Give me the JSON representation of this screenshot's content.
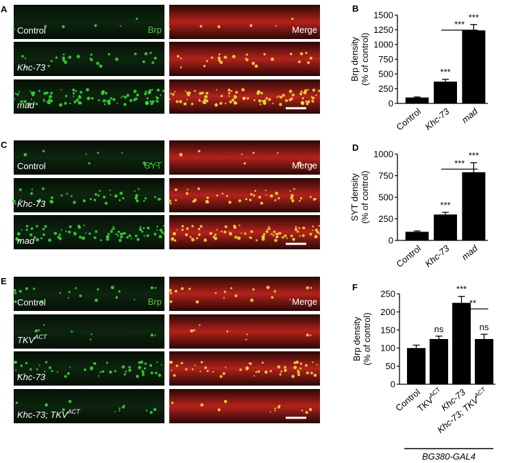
{
  "image_panels": [
    {
      "letter": "A",
      "channel": "Brp",
      "merge": "Merge",
      "rows": [
        {
          "text": "Control",
          "italic": false
        },
        {
          "text": "Khc-73",
          "italic": true
        },
        {
          "text": "mad",
          "italic": true
        }
      ]
    },
    {
      "letter": "C",
      "channel": "SYT",
      "merge": "Merge",
      "rows": [
        {
          "text": "Control",
          "italic": false
        },
        {
          "text": "Khc-73",
          "italic": true
        },
        {
          "text": "mad",
          "italic": true
        }
      ]
    },
    {
      "letter": "E",
      "channel": "Brp",
      "merge": "Merge",
      "rows": [
        {
          "text": "Control",
          "italic": false
        },
        {
          "text": "TKV",
          "sup": "ACT",
          "italic": true
        },
        {
          "text": "Khc-73",
          "italic": true
        },
        {
          "text": "Khc-73; TKV",
          "sup": "ACT",
          "italic": true
        }
      ]
    }
  ],
  "chart_data": [
    {
      "type": "bar",
      "letter": "B",
      "ylabel": [
        "Brp density",
        "(% of control)"
      ],
      "categories": [
        {
          "text": "Control",
          "italic": false
        },
        {
          "text": "Khc-73",
          "italic": true
        },
        {
          "text": "mad",
          "italic": true
        }
      ],
      "values": [
        100,
        370,
        1240
      ],
      "errors": [
        10,
        40,
        100
      ],
      "color": "#000000",
      "annotations": [
        null,
        "***",
        "***"
      ],
      "bracket": {
        "label": "***",
        "from": 1,
        "to": 2
      },
      "ylim": [
        0,
        1500
      ],
      "yticks": [
        0,
        250,
        500,
        750,
        1000,
        1250,
        1500
      ]
    },
    {
      "type": "bar",
      "letter": "D",
      "ylabel": [
        "SYT density",
        "(% of control)"
      ],
      "categories": [
        {
          "text": "Control",
          "italic": false
        },
        {
          "text": "Khc-73",
          "italic": true
        },
        {
          "text": "mad",
          "italic": true
        }
      ],
      "values": [
        100,
        300,
        790
      ],
      "errors": [
        10,
        25,
        110
      ],
      "color": "#000000",
      "annotations": [
        null,
        "***",
        "***"
      ],
      "bracket": {
        "label": "***",
        "from": 1,
        "to": 2
      },
      "ylim": [
        0,
        1000
      ],
      "yticks": [
        0,
        250,
        500,
        750,
        1000
      ]
    },
    {
      "type": "bar",
      "letter": "F",
      "ylabel": [
        "Brp density",
        "(% of control)"
      ],
      "categories": [
        {
          "text": "Control",
          "italic": false
        },
        {
          "text": "TKV",
          "sup": "ACT",
          "italic": false
        },
        {
          "text": "Khc-73",
          "italic": true
        },
        {
          "text": "Khc-73; TKV",
          "sup": "ACT",
          "italic": true
        }
      ],
      "values": [
        100,
        125,
        225,
        125
      ],
      "errors": [
        8,
        8,
        18,
        13
      ],
      "color": "#000000",
      "annotations": [
        null,
        "ns",
        "***",
        "ns"
      ],
      "bracket": {
        "label": "**",
        "from": 2,
        "to": 3
      },
      "group_label": "BG380-GAL4",
      "ylim": [
        0,
        250
      ],
      "yticks": [
        0,
        50,
        100,
        150,
        200,
        250
      ]
    }
  ]
}
